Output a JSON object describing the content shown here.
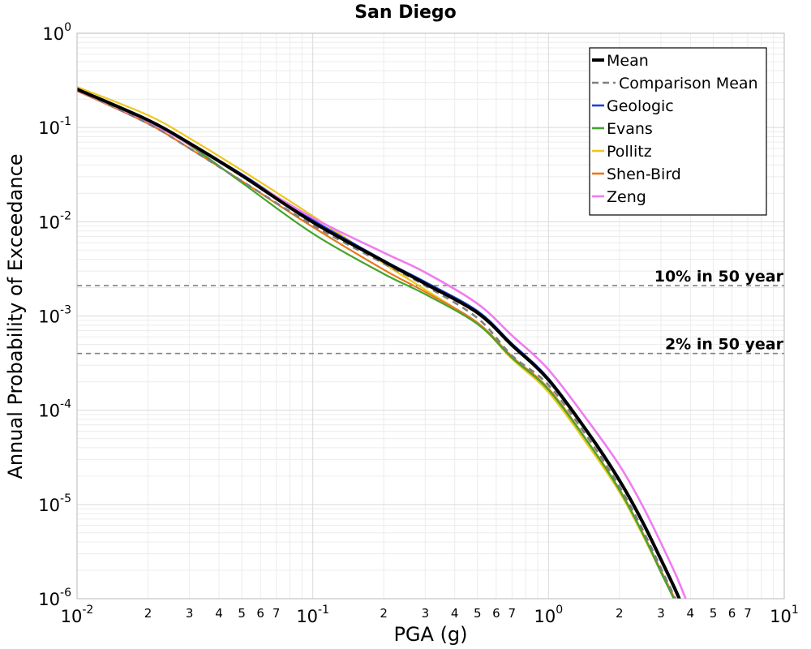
{
  "chart_data": {
    "type": "line",
    "title": "San Diego",
    "xlabel": "PGA (g)",
    "ylabel": "Annual Probability of Exceedance",
    "xscale": "log",
    "yscale": "log",
    "xlim": [
      0.01,
      10
    ],
    "ylim": [
      1e-06,
      1
    ],
    "grid": true,
    "legend_position": "top-right",
    "x_major_ticks": [
      {
        "base": "10",
        "exp": "-2"
      },
      {
        "base": "10",
        "exp": "-1"
      },
      {
        "base": "10",
        "exp": "0"
      },
      {
        "base": "10",
        "exp": "1"
      }
    ],
    "y_major_ticks": [
      {
        "base": "10",
        "exp": "-6"
      },
      {
        "base": "10",
        "exp": "-5"
      },
      {
        "base": "10",
        "exp": "-4"
      },
      {
        "base": "10",
        "exp": "-3"
      },
      {
        "base": "10",
        "exp": "-2"
      },
      {
        "base": "10",
        "exp": "-1"
      },
      {
        "base": "10",
        "exp": "0"
      }
    ],
    "x_minor_tick_labels": [
      "2",
      "3",
      "4",
      "5",
      "6",
      "7"
    ],
    "reference_lines": [
      {
        "label": "10% in 50 year",
        "y": 0.0021,
        "color": "#808080"
      },
      {
        "label": "2% in 50 year",
        "y": 0.0004,
        "color": "#808080"
      }
    ],
    "x": [
      0.01,
      0.02,
      0.03,
      0.05,
      0.1,
      0.2,
      0.3,
      0.5,
      0.7,
      1.0,
      1.5,
      2.0,
      2.5,
      3.0,
      3.5,
      4.0
    ],
    "series": [
      {
        "name": "Pollitz",
        "color": "#ecc81c",
        "width": 2.2,
        "dash": "",
        "values": [
          0.27,
          0.135,
          0.077,
          0.035,
          0.0115,
          0.0036,
          0.0019,
          0.00083,
          0.00035,
          0.000155,
          3.95e-05,
          1.35e-05,
          4.8e-06,
          1.9e-06,
          8.5e-07,
          3.8e-07
        ]
      },
      {
        "name": "Shen-Bird",
        "color": "#e8781e",
        "width": 2.2,
        "dash": "",
        "values": [
          0.245,
          0.11,
          0.06,
          0.027,
          0.0088,
          0.0031,
          0.0018,
          0.00085,
          0.00037,
          0.00017,
          4.3e-05,
          1.45e-05,
          5.1e-06,
          2e-06,
          9e-07,
          4e-07
        ]
      },
      {
        "name": "Evans",
        "color": "#43a42c",
        "width": 2.2,
        "dash": "",
        "values": [
          0.25,
          0.118,
          0.065,
          0.026,
          0.0075,
          0.0028,
          0.0017,
          0.00082,
          0.00036,
          0.000165,
          4.25e-05,
          1.42e-05,
          5e-06,
          1.9e-06,
          8.5e-07,
          3.8e-07
        ]
      },
      {
        "name": "Geologic",
        "color": "#1f3fe0",
        "width": 2.2,
        "dash": "",
        "values": [
          0.255,
          0.12,
          0.068,
          0.032,
          0.0105,
          0.0039,
          0.0023,
          0.00113,
          0.00051,
          0.000218,
          5.55e-05,
          1.85e-05,
          6.8e-06,
          2.7e-06,
          1.2e-06,
          5.5e-07
        ]
      },
      {
        "name": "Zeng",
        "color": "#f07cf0",
        "width": 2.6,
        "dash": "",
        "values": [
          0.25,
          0.115,
          0.066,
          0.031,
          0.011,
          0.0047,
          0.0029,
          0.00135,
          0.00062,
          0.00027,
          7.2e-05,
          2.6e-05,
          9.8e-06,
          3.9e-06,
          1.7e-06,
          7.5e-07
        ]
      },
      {
        "name": "Comparison Mean",
        "color": "#808080",
        "width": 2.6,
        "dash": "8,6",
        "values": [
          0.25,
          0.11,
          0.06,
          0.027,
          0.0092,
          0.0036,
          0.0021,
          0.00095,
          0.00038,
          0.000185,
          4.75e-05,
          1.55e-05,
          5.5e-06,
          2.1e-06,
          9.3e-07,
          4.2e-07
        ]
      },
      {
        "name": "Mean",
        "color": "#000000",
        "width": 4.0,
        "dash": "",
        "values": [
          0.255,
          0.12,
          0.068,
          0.031,
          0.0099,
          0.0038,
          0.0022,
          0.00108,
          0.00049,
          0.00021,
          5.4e-05,
          1.8e-05,
          6.6e-06,
          2.6e-06,
          1.15e-06,
          5.2e-07
        ]
      }
    ],
    "legend": [
      {
        "name": "Mean",
        "color": "#000000",
        "width": 4.0,
        "dash": ""
      },
      {
        "name": "Comparison Mean",
        "color": "#808080",
        "width": 2.6,
        "dash": "8,6"
      },
      {
        "name": "Geologic",
        "color": "#1f3fe0",
        "width": 2.6,
        "dash": ""
      },
      {
        "name": "Evans",
        "color": "#43a42c",
        "width": 2.6,
        "dash": ""
      },
      {
        "name": "Pollitz",
        "color": "#ecc81c",
        "width": 2.6,
        "dash": ""
      },
      {
        "name": "Shen-Bird",
        "color": "#e8781e",
        "width": 2.6,
        "dash": ""
      },
      {
        "name": "Zeng",
        "color": "#f07cf0",
        "width": 2.6,
        "dash": ""
      }
    ]
  }
}
